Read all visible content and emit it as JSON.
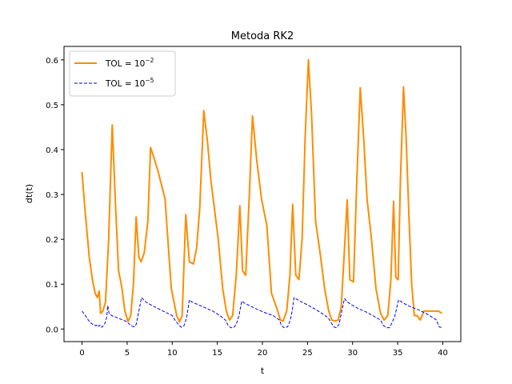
{
  "chart_data": {
    "type": "line",
    "title": "Metoda RK2",
    "xlabel": "t",
    "ylabel": "dt(t)",
    "xlim": [
      -2.0,
      42.0
    ],
    "ylim": [
      -0.028,
      0.63
    ],
    "xticks": [
      0,
      5,
      10,
      15,
      20,
      25,
      30,
      35,
      40
    ],
    "yticks": [
      0.0,
      0.1,
      0.2,
      0.3,
      0.4,
      0.5,
      0.6
    ],
    "xtick_labels": [
      "0",
      "5",
      "10",
      "15",
      "20",
      "25",
      "30",
      "35",
      "40"
    ],
    "ytick_labels": [
      "0.0",
      "0.1",
      "0.2",
      "0.3",
      "0.4",
      "0.5",
      "0.6"
    ],
    "grid": false,
    "legend": {
      "placement": "upper left",
      "entries": [
        {
          "base": "TOL = 10",
          "exp": "−2"
        },
        {
          "base": "TOL = 10",
          "exp": "−5"
        }
      ]
    },
    "series": [
      {
        "color": "#ff8c00",
        "linestyle": "solid",
        "x": [
          0.0,
          0.35,
          0.8,
          1.15,
          1.45,
          1.7,
          1.9,
          2.05,
          2.3,
          2.6,
          2.95,
          3.35,
          3.7,
          4.05,
          4.4,
          4.75,
          5.1,
          5.4,
          5.7,
          6.0,
          6.3,
          6.55,
          6.9,
          7.3,
          7.6,
          8.0,
          8.45,
          9.2,
          9.9,
          10.2,
          10.5,
          10.8,
          11.1,
          11.5,
          11.9,
          12.35,
          12.7,
          13.05,
          13.5,
          13.9,
          14.3,
          15.1,
          15.6,
          16.0,
          16.35,
          16.7,
          17.1,
          17.5,
          17.8,
          18.15,
          18.55,
          18.9,
          19.35,
          19.9,
          20.5,
          21.0,
          21.7,
          22.0,
          22.3,
          22.7,
          23.05,
          23.35,
          23.7,
          24.05,
          24.4,
          24.75,
          25.1,
          25.45,
          25.9,
          26.4,
          26.9,
          27.35,
          27.7,
          28.05,
          28.4,
          28.75,
          29.05,
          29.4,
          29.7,
          30.1,
          30.45,
          30.85,
          31.25,
          31.6,
          32.05,
          32.6,
          33.1,
          33.5,
          33.9,
          34.25,
          34.55,
          34.8,
          35.05,
          35.3,
          35.65,
          35.95,
          36.25,
          36.55,
          36.85,
          37.15,
          37.5,
          37.9,
          38.3,
          38.7,
          39.1,
          39.55,
          39.9
        ],
        "y": [
          0.35,
          0.26,
          0.16,
          0.11,
          0.08,
          0.07,
          0.085,
          0.035,
          0.04,
          0.06,
          0.2,
          0.455,
          0.28,
          0.13,
          0.095,
          0.04,
          0.017,
          0.03,
          0.1,
          0.25,
          0.16,
          0.15,
          0.17,
          0.24,
          0.405,
          0.38,
          0.35,
          0.29,
          0.09,
          0.06,
          0.03,
          0.016,
          0.03,
          0.255,
          0.15,
          0.145,
          0.18,
          0.27,
          0.487,
          0.42,
          0.33,
          0.2,
          0.09,
          0.04,
          0.02,
          0.03,
          0.12,
          0.275,
          0.13,
          0.12,
          0.3,
          0.475,
          0.38,
          0.29,
          0.23,
          0.08,
          0.04,
          0.02,
          0.018,
          0.04,
          0.12,
          0.278,
          0.12,
          0.11,
          0.2,
          0.43,
          0.6,
          0.48,
          0.24,
          0.17,
          0.09,
          0.04,
          0.02,
          0.018,
          0.02,
          0.05,
          0.16,
          0.288,
          0.11,
          0.105,
          0.32,
          0.538,
          0.42,
          0.29,
          0.21,
          0.09,
          0.035,
          0.02,
          0.03,
          0.11,
          0.285,
          0.115,
          0.11,
          0.33,
          0.54,
          0.42,
          0.25,
          0.1,
          0.03,
          0.03,
          0.02,
          0.04,
          0.04,
          0.04,
          0.04,
          0.04,
          0.035
        ]
      },
      {
        "color": "#0000ff",
        "linestyle": "dashed",
        "x": [
          0.0,
          0.3,
          0.7,
          1.0,
          1.2,
          1.4,
          1.55,
          1.7,
          1.85,
          2.0,
          2.2,
          2.45,
          2.6,
          2.75,
          2.85,
          3.0,
          3.3,
          3.8,
          4.3,
          4.8,
          5.2,
          5.4,
          5.6,
          5.8,
          6.0,
          6.2,
          6.6,
          7.1,
          8.0,
          9.0,
          10.0,
          10.3,
          10.7,
          11.0,
          11.3,
          11.6,
          11.9,
          12.2,
          12.8,
          13.6,
          14.5,
          15.3,
          15.9,
          16.2,
          16.5,
          16.8,
          17.1,
          17.4,
          17.7,
          18.0,
          18.5,
          19.3,
          20.2,
          21.2,
          21.9,
          22.1,
          22.4,
          22.8,
          23.1,
          23.3,
          23.5,
          24.1,
          24.9,
          25.8,
          26.6,
          27.3,
          27.6,
          27.9,
          28.2,
          28.5,
          28.8,
          29.1,
          29.4,
          29.8,
          30.6,
          31.6,
          32.4,
          33.1,
          33.4,
          33.8,
          34.1,
          34.4,
          34.7,
          35.1,
          35.6,
          36.4,
          37.4,
          38.3,
          39.0,
          39.3,
          39.6,
          39.9
        ],
        "y": [
          0.04,
          0.032,
          0.02,
          0.013,
          0.01,
          0.009,
          0.007,
          0.01,
          0.006,
          0.009,
          0.004,
          0.01,
          0.016,
          0.028,
          0.052,
          0.035,
          0.03,
          0.026,
          0.022,
          0.018,
          0.012,
          0.008,
          0.006,
          0.005,
          0.01,
          0.03,
          0.07,
          0.06,
          0.05,
          0.04,
          0.03,
          0.02,
          0.01,
          0.004,
          0.007,
          0.025,
          0.065,
          0.06,
          0.055,
          0.048,
          0.04,
          0.03,
          0.02,
          0.008,
          0.003,
          0.003,
          0.01,
          0.03,
          0.062,
          0.058,
          0.053,
          0.045,
          0.037,
          0.03,
          0.02,
          0.008,
          0.003,
          0.005,
          0.02,
          0.04,
          0.07,
          0.063,
          0.055,
          0.045,
          0.035,
          0.025,
          0.015,
          0.005,
          0.003,
          0.01,
          0.04,
          0.068,
          0.061,
          0.055,
          0.046,
          0.037,
          0.028,
          0.02,
          0.008,
          0.003,
          0.003,
          0.015,
          0.03,
          0.065,
          0.058,
          0.05,
          0.042,
          0.033,
          0.024,
          0.02,
          0.005,
          0.003
        ]
      }
    ]
  }
}
